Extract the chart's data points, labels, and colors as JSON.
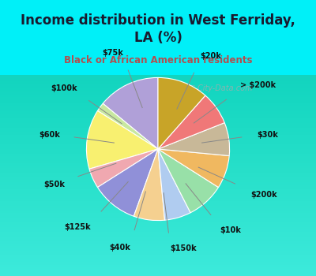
{
  "title": "Income distribution in West Ferriday,\nLA (%)",
  "subtitle": "Black or African American residents",
  "watermark": "ⓘ City-Data.com",
  "labels": [
    "$20k",
    "> $200k",
    "$30k",
    "$200k",
    "$10k",
    "$150k",
    "$40k",
    "$125k",
    "$50k",
    "$60k",
    "$100k",
    "$75k"
  ],
  "values": [
    14.0,
    2.0,
    13.5,
    4.5,
    10.5,
    7.0,
    6.0,
    8.5,
    7.5,
    7.5,
    7.5,
    11.5
  ],
  "colors": [
    "#b0a0d8",
    "#c8e8a0",
    "#f8f070",
    "#f0a8b0",
    "#9090d8",
    "#f5d090",
    "#b0ccf0",
    "#98e0a8",
    "#f0b860",
    "#c8b898",
    "#f07878",
    "#c8a428"
  ],
  "title_bg": "#00f0f8",
  "title_color": "#1a1a2e",
  "subtitle_color": "#b05050",
  "chart_bg_top": "#d8f0e8",
  "chart_bg_bottom": "#e8f8f0",
  "startangle": 90,
  "border_color": "#00d8e8"
}
